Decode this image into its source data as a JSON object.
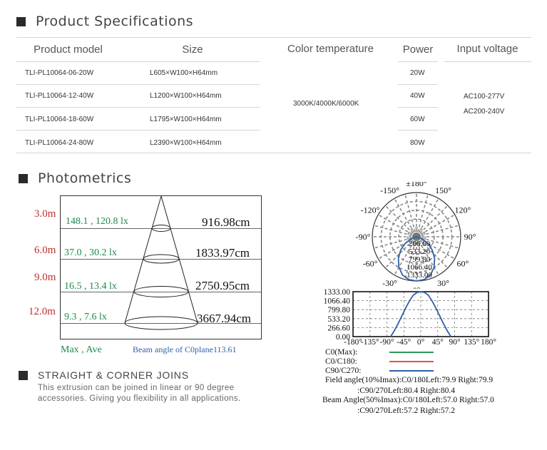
{
  "specs": {
    "title": "Product Specifications",
    "headers": {
      "model": "Product model",
      "size": "Size",
      "color": "Color temperature",
      "power": "Power",
      "voltage": "Input voltage"
    },
    "rows": [
      {
        "model": "TLI-PL10064-06-20W",
        "size": "L605×W100×H64mm",
        "power": "20W"
      },
      {
        "model": "TLI-PL10064-12-40W",
        "size": "L1200×W100×H64mm",
        "power": "40W"
      },
      {
        "model": "TLI-PL10064-18-60W",
        "size": "L1795×W100×H64mm",
        "power": "60W"
      },
      {
        "model": "TLI-PL10064-24-80W",
        "size": "L2390×W100×H64mm",
        "power": "80W"
      }
    ],
    "color_temperature": "3000K/4000K/6000K",
    "voltage_1": "AC100-277V",
    "voltage_2": "AC200-240V"
  },
  "photometrics": {
    "title": "Photometrics",
    "cone": {
      "rows": [
        {
          "distance": "3.0m",
          "lux": "148.1 , 120.8 lx",
          "diameter": "916.98cm"
        },
        {
          "distance": "6.0m",
          "lux": "37.0 , 30.2 lx",
          "diameter": "1833.97cm"
        },
        {
          "distance": "9.0m",
          "lux": "16.5 , 13.4 lx",
          "diameter": "2750.95cm"
        },
        {
          "distance": "12.0m",
          "lux": "9.3 , 7.6 lx",
          "diameter": "3667.94cm"
        }
      ],
      "footer_left": "Max , Ave",
      "footer_right": "Beam angle of C0plane113.61"
    },
    "polar": {
      "angles": [
        {
          "label": "±180°",
          "deg": 180
        },
        {
          "label": "-150°",
          "deg": -150
        },
        {
          "label": "150°",
          "deg": 150
        },
        {
          "label": "-120°",
          "deg": -120
        },
        {
          "label": "120°",
          "deg": 120
        },
        {
          "label": "-90°",
          "deg": -90
        },
        {
          "label": "90°",
          "deg": 90
        },
        {
          "label": "-60°",
          "deg": -60
        },
        {
          "label": "60°",
          "deg": 60
        },
        {
          "label": "-30°",
          "deg": -30
        },
        {
          "label": "30°",
          "deg": 30
        },
        {
          "label": "0°",
          "deg": 0
        }
      ],
      "rings": [
        "266.60",
        "533.20",
        "799.80",
        "1066.40",
        "1333.00"
      ]
    },
    "chart_data": {
      "type": "line",
      "x_ticks": [
        "-180°",
        "-135°",
        "-90°",
        "-45°",
        "0°",
        "45°",
        "90°",
        "135°",
        "180°"
      ],
      "y_ticks": [
        "0.00",
        "266.60",
        "533.20",
        "799.80",
        "1066.40",
        "1333.00"
      ],
      "xlim": [
        -180,
        180
      ],
      "ylim": [
        0,
        1333
      ],
      "grid": true,
      "series": [
        {
          "name": "C90/C270:",
          "color": "#3060a8",
          "x": [
            -80,
            -70,
            -60,
            -50,
            -40,
            -30,
            -20,
            -10,
            0,
            10,
            20,
            30,
            40,
            50,
            60,
            70,
            80
          ],
          "y": [
            0,
            180,
            390,
            620,
            850,
            1060,
            1230,
            1310,
            1333,
            1310,
            1230,
            1060,
            850,
            620,
            390,
            180,
            0
          ]
        }
      ],
      "legend": [
        {
          "name": "C0(Max):",
          "color": "#2a9a55"
        },
        {
          "name": "C0/C180:",
          "color": "#e05050"
        },
        {
          "name": "C90/C270:",
          "color": "#3060a8"
        }
      ]
    },
    "notes": [
      "Field angle(10%Imax):C0/180Left:79.9 Right:79.9",
      ":C90/270Left:80.4 Right:80.4",
      "Beam Angle(50%Imax):C0/180Left:57.0 Right:57.0",
      ":C90/270Left:57.2 Right:57.2"
    ]
  },
  "joins": {
    "title": "STRAIGHT & CORNER JOINS",
    "line1": "This extrusion can be joined in linear or 90 degree",
    "line2": "accessories. Giving you flexibility in all applications."
  },
  "colors": {
    "red": "#c0302a",
    "green": "#1f8a4c",
    "blue": "#3060a8"
  }
}
